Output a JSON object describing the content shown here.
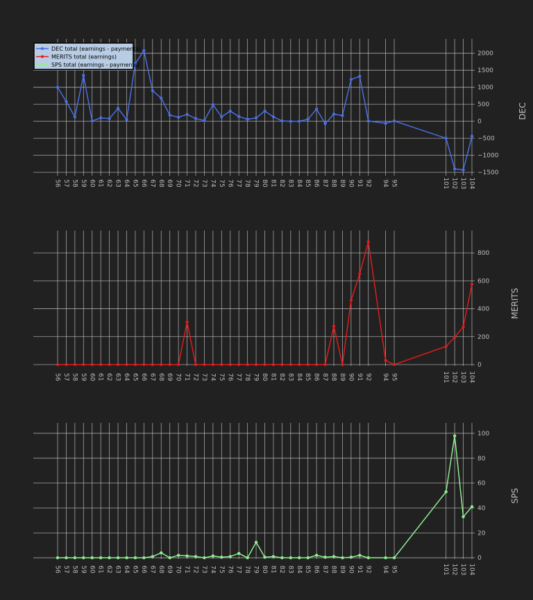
{
  "chart_data": [
    {
      "type": "line",
      "ylabel": "DEC",
      "ylim": [
        -1600,
        2300
      ],
      "yticks": [
        -1500,
        -1000,
        -500,
        0,
        500,
        1000,
        1500,
        2000
      ],
      "color": "#4a6fe3",
      "legend_label": "DEC total (earnings - payments)",
      "x": [
        56,
        57,
        58,
        59,
        60,
        61,
        62,
        63,
        64,
        65,
        66,
        67,
        68,
        69,
        70,
        71,
        72,
        73,
        74,
        75,
        76,
        77,
        78,
        79,
        80,
        81,
        82,
        83,
        84,
        85,
        86,
        87,
        88,
        89,
        90,
        91,
        92,
        94,
        95,
        101,
        102,
        103,
        104
      ],
      "values": [
        1000,
        580,
        130,
        1350,
        10,
        100,
        80,
        380,
        50,
        1700,
        2080,
        900,
        680,
        180,
        120,
        200,
        80,
        20,
        490,
        130,
        300,
        140,
        60,
        100,
        300,
        130,
        10,
        0,
        0,
        60,
        360,
        -70,
        210,
        170,
        1230,
        1320,
        10,
        -60,
        10,
        -500,
        -1400,
        -1430,
        -440
      ]
    },
    {
      "type": "line",
      "ylabel": "MERITS",
      "ylim": [
        -10,
        930
      ],
      "yticks": [
        0,
        200,
        400,
        600,
        800
      ],
      "color": "#e01c1c",
      "legend_label": "MERITS  total (earnings)",
      "x": [
        56,
        57,
        58,
        59,
        60,
        61,
        62,
        63,
        64,
        65,
        66,
        67,
        68,
        69,
        70,
        71,
        72,
        73,
        74,
        75,
        76,
        77,
        78,
        79,
        80,
        81,
        82,
        83,
        84,
        85,
        86,
        87,
        88,
        89,
        90,
        91,
        92,
        94,
        95,
        101,
        102,
        103,
        104
      ],
      "values": [
        0,
        0,
        0,
        0,
        0,
        0,
        0,
        0,
        0,
        0,
        0,
        0,
        0,
        0,
        0,
        305,
        0,
        0,
        0,
        0,
        0,
        0,
        0,
        0,
        0,
        0,
        0,
        0,
        0,
        0,
        0,
        0,
        275,
        0,
        460,
        650,
        880,
        30,
        0,
        130,
        195,
        270,
        575
      ]
    },
    {
      "type": "line",
      "ylabel": "SPS",
      "ylim": [
        -1,
        105
      ],
      "yticks": [
        0,
        20,
        40,
        60,
        80,
        100
      ],
      "color": "#90ee90",
      "legend_label": "SPS total (earnings - payments)",
      "x": [
        56,
        57,
        58,
        59,
        60,
        61,
        62,
        63,
        64,
        65,
        66,
        67,
        68,
        69,
        70,
        71,
        72,
        73,
        74,
        75,
        76,
        77,
        78,
        79,
        80,
        81,
        82,
        83,
        84,
        85,
        86,
        87,
        88,
        89,
        90,
        91,
        92,
        94,
        95,
        101,
        102,
        103,
        104
      ],
      "values": [
        0,
        0,
        0,
        0,
        0,
        0,
        0,
        0,
        0,
        0,
        0,
        1,
        4,
        0,
        2,
        1.5,
        1,
        0,
        1.5,
        0.5,
        1,
        3.5,
        0,
        12.5,
        0.5,
        1,
        0,
        0,
        0,
        0,
        2,
        0.5,
        1,
        0,
        0.5,
        2,
        0,
        0,
        0,
        53,
        98,
        33,
        41
      ]
    }
  ]
}
